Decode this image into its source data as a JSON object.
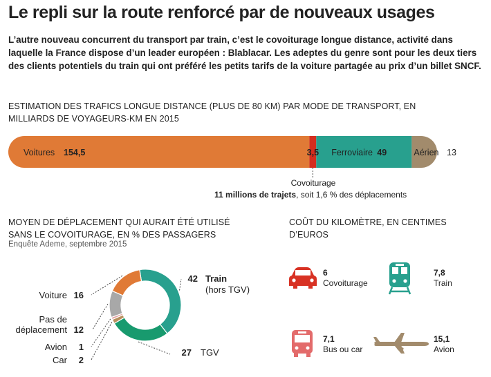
{
  "header": {
    "title": "Le repli sur la route renforcé par de nouveaux usages",
    "intro": "L’autre nouveau concurrent du transport par train, c’est le covoiturage longue distance, activité dans laquelle la France dispose d’un leader européen : Blablacar. Les adeptes du genre sont pour les deux tiers des clients potentiels du train qui ont préféré les petits tarifs de la voiture partagée au prix d’un billet SNCF."
  },
  "chart_data": [
    {
      "type": "bar",
      "title": "ESTIMATION DES TRAFICS LONGUE DISTANCE (PLUS DE 80 KM) PAR MODE DE TRANSPORT, EN MILLIARDS DE VOYAGEURS-KM EN 2015",
      "categories": [
        "Voitures",
        "Covoiturage",
        "Ferroviaire",
        "Aérien"
      ],
      "values": [
        154.5,
        3.5,
        49,
        13
      ],
      "value_labels": [
        "154,5",
        "3,5",
        "49",
        "13"
      ],
      "colors": [
        "#e07a36",
        "#d42e1e",
        "#28a08e",
        "#a28b6c"
      ],
      "annotation": {
        "label": "Covoiturage",
        "text_bold": "11 millions de trajets",
        "text": ", soit 1,6 % des déplacements"
      }
    },
    {
      "type": "pie",
      "title": "MOYEN DE DÉPLACEMENT QUI AURAIT ÉTÉ UTILISÉ SANS LE COVOITURAGE, EN % DES PASSAGERS",
      "subtitle": "Enquête Ademe, septembre 2015",
      "slices": [
        {
          "label": "Train",
          "sublabel": "(hors TGV)",
          "value": 42,
          "color": "#28a08e"
        },
        {
          "label": "TGV",
          "value": 27,
          "color": "#189a6e"
        },
        {
          "label": "Car",
          "value": 2,
          "color": "#b8905e"
        },
        {
          "label": "Avion",
          "value": 1,
          "color": "#e2a0a0"
        },
        {
          "label": "Pas de déplacement",
          "value": 12,
          "color": "#a8a8a8"
        },
        {
          "label": "Voiture",
          "value": 16,
          "color": "#e07a36"
        }
      ]
    },
    {
      "type": "table",
      "title": "COÛT DU KILOMÈTRE, EN CENTIMES D’EUROS",
      "rows": [
        {
          "label": "Covoiturage",
          "value": "6",
          "icon": "car-icon",
          "color": "#d83224"
        },
        {
          "label": "Train",
          "value": "7,8",
          "icon": "train-icon",
          "color": "#28a08e"
        },
        {
          "label": "Bus ou car",
          "value": "7,1",
          "icon": "bus-icon",
          "color": "#e36b6b"
        },
        {
          "label": "Avion",
          "value": "15,1",
          "icon": "plane-icon",
          "color": "#a28b6c"
        }
      ]
    }
  ]
}
